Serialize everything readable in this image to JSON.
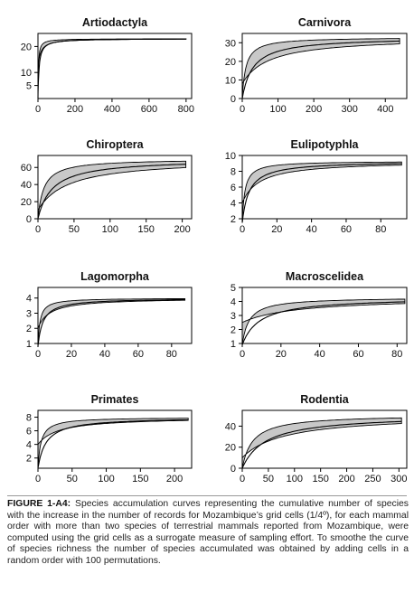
{
  "chart_data": [
    {
      "type": "area",
      "title": "Artiodactyla",
      "xlim": [
        0,
        830
      ],
      "ylim": [
        0,
        25
      ],
      "xticks": [
        0,
        200,
        400,
        600,
        800
      ],
      "yticks": [
        5,
        10,
        20
      ],
      "x_max": 800,
      "y_max": 23,
      "k_mean": 6,
      "k_low": 2.5,
      "k_high": 14,
      "y0_low": 0,
      "y0_high": 12
    },
    {
      "type": "area",
      "title": "Carnivora",
      "xlim": [
        0,
        460
      ],
      "ylim": [
        0,
        35
      ],
      "xticks": [
        0,
        100,
        200,
        300,
        400
      ],
      "yticks": [
        0,
        10,
        20,
        30
      ],
      "x_max": 440,
      "y_max": 33,
      "k_mean": 30,
      "k_low": 10,
      "k_high": 75,
      "y0_low": 0,
      "y0_high": 8
    },
    {
      "type": "area",
      "title": "Chiroptera",
      "xlim": [
        0,
        213
      ],
      "ylim": [
        0,
        74
      ],
      "xticks": [
        0,
        50,
        100,
        150,
        200
      ],
      "yticks": [
        0,
        20,
        40,
        60
      ],
      "x_max": 205,
      "y_max": 70,
      "k_mean": 20,
      "k_low": 8,
      "k_high": 42,
      "y0_low": 0,
      "y0_high": 10
    },
    {
      "type": "area",
      "title": "Eulipotyphla",
      "xlim": [
        0,
        95
      ],
      "ylim": [
        2,
        10
      ],
      "xticks": [
        0,
        20,
        40,
        60,
        80
      ],
      "yticks": [
        2,
        4,
        6,
        8,
        10
      ],
      "x_max": 92,
      "y_max": 9.3,
      "k_mean": 4,
      "k_low": 1.5,
      "k_high": 10,
      "y0_low": 1.5,
      "y0_high": 4
    },
    {
      "type": "area",
      "title": "Lagomorpha",
      "xlim": [
        0,
        92
      ],
      "ylim": [
        1,
        4.7
      ],
      "xticks": [
        0,
        20,
        40,
        60,
        80
      ],
      "yticks": [
        1,
        2,
        3,
        4
      ],
      "x_max": 88,
      "y_max": 4,
      "k_mean": 3,
      "k_low": 1.2,
      "k_high": 7,
      "y0_low": 0.8,
      "y0_high": 2
    },
    {
      "type": "area",
      "title": "Macroscelidea",
      "xlim": [
        0,
        85
      ],
      "ylim": [
        1,
        5
      ],
      "xticks": [
        0,
        20,
        40,
        60,
        80
      ],
      "yticks": [
        1,
        2,
        3,
        4,
        5
      ],
      "x_max": 84,
      "y_max": 4.3,
      "k_mean": 9,
      "k_low": 3.5,
      "k_high": 28,
      "y0_low": 0.9,
      "y0_high": 2.5
    },
    {
      "type": "area",
      "title": "Primates",
      "xlim": [
        0,
        225
      ],
      "ylim": [
        0.5,
        9
      ],
      "xticks": [
        0,
        50,
        100,
        150,
        200
      ],
      "yticks": [
        2,
        4,
        6,
        8
      ],
      "x_max": 220,
      "y_max": 8,
      "k_mean": 12,
      "k_low": 4.5,
      "k_high": 30,
      "y0_low": 0.5,
      "y0_high": 4
    },
    {
      "type": "area",
      "title": "Rodentia",
      "xlim": [
        0,
        315
      ],
      "ylim": [
        0,
        55
      ],
      "xticks": [
        0,
        50,
        100,
        150,
        200,
        250,
        300
      ],
      "yticks": [
        0,
        20,
        40
      ],
      "x_max": 305,
      "y_max": 51,
      "k_mean": 45,
      "k_low": 20,
      "k_high": 80,
      "y0_low": 0,
      "y0_high": 10
    }
  ],
  "caption": {
    "lead": "FIGURE 1-A4:",
    "body": " Species accumulation curves representing the cumulative number of species with the increase in the number of records for Mozambique’s grid cells (1/4º), for each mammal order with more than two species of terrestrial mammals reported from Mozambique, were computed using the grid cells as a surrogate measure of sampling effort. To smoothe the curve of species richness the number of species accumulated was obtained by adding cells in a random order with 100 permutations."
  },
  "colors": {
    "band": "#c8c8c8",
    "line": "#000000",
    "axis": "#000000"
  }
}
